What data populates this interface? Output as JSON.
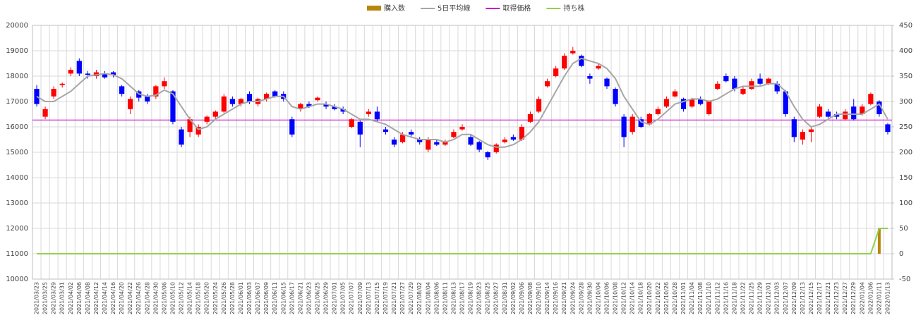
{
  "chart_data": {
    "type": "candlestick",
    "categories": [
      "2021/03/23",
      "2021/03/25",
      "2021/03/29",
      "2021/03/31",
      "2021/04/02",
      "2021/04/06",
      "2021/04/08",
      "2021/04/12",
      "2021/04/14",
      "2021/04/16",
      "2021/04/20",
      "2021/04/22",
      "2021/04/26",
      "2021/04/28",
      "2021/04/30",
      "2021/05/06",
      "2021/05/10",
      "2021/05/12",
      "2021/05/14",
      "2021/05/18",
      "2021/05/20",
      "2021/05/24",
      "2021/05/26",
      "2021/05/28",
      "2021/06/01",
      "2021/06/03",
      "2021/06/07",
      "2021/06/09",
      "2021/06/11",
      "2021/06/15",
      "2021/06/17",
      "2021/06/21",
      "2021/06/23",
      "2021/06/25",
      "2021/06/29",
      "2021/07/01",
      "2021/07/05",
      "2021/07/07",
      "2021/07/09",
      "2021/07/13",
      "2021/07/15",
      "2021/07/19",
      "2021/07/21",
      "2021/07/27",
      "2021/07/29",
      "2021/08/02",
      "2021/08/04",
      "2021/08/06",
      "2021/08/11",
      "2021/08/13",
      "2021/08/17",
      "2021/08/19",
      "2021/08/23",
      "2021/08/25",
      "2021/08/27",
      "2021/08/31",
      "2021/09/02",
      "2021/09/06",
      "2021/09/08",
      "2021/09/10",
      "2021/09/14",
      "2021/09/16",
      "2021/09/21",
      "2021/09/24",
      "2021/09/28",
      "2021/09/30",
      "2021/10/04",
      "2021/10/06",
      "2021/10/08",
      "2021/10/12",
      "2021/10/14",
      "2021/10/18",
      "2021/10/20",
      "2021/10/22",
      "2021/10/26",
      "2021/10/28",
      "2021/11/01",
      "2021/11/04",
      "2021/11/08",
      "2021/11/10",
      "2021/11/12",
      "2021/11/16",
      "2021/11/18",
      "2021/11/22",
      "2021/11/25",
      "2021/11/29",
      "2021/12/01",
      "2021/12/03",
      "2021/12/07",
      "2021/12/09",
      "2021/12/13",
      "2021/12/15",
      "2021/12/17",
      "2021/12/21",
      "2021/12/23",
      "2021/12/27",
      "2021/12/29",
      "2022/01/04",
      "2022/01/06",
      "2022/01/11",
      "2022/01/13"
    ],
    "ohlc": [
      [
        17500,
        17650,
        16800,
        16900
      ],
      [
        16400,
        16800,
        16300,
        16700
      ],
      [
        17200,
        17600,
        17100,
        17500
      ],
      [
        17650,
        17750,
        17550,
        17700
      ],
      [
        18100,
        18350,
        18000,
        18250
      ],
      [
        18600,
        18700,
        18000,
        18100
      ],
      [
        18100,
        18200,
        17900,
        18050
      ],
      [
        18000,
        18250,
        17900,
        18150
      ],
      [
        18100,
        18200,
        17900,
        17950
      ],
      [
        18150,
        18200,
        17950,
        18050
      ],
      [
        17600,
        17650,
        17200,
        17300
      ],
      [
        16700,
        17200,
        16500,
        17100
      ],
      [
        17400,
        17450,
        17000,
        17150
      ],
      [
        17200,
        17300,
        16900,
        17000
      ],
      [
        17200,
        17650,
        17100,
        17600
      ],
      [
        17600,
        17950,
        17500,
        17800
      ],
      [
        17400,
        17450,
        16100,
        16200
      ],
      [
        15900,
        16000,
        15200,
        15300
      ],
      [
        15800,
        16400,
        15600,
        16300
      ],
      [
        15700,
        16100,
        15600,
        16000
      ],
      [
        16200,
        16450,
        16100,
        16400
      ],
      [
        16400,
        16650,
        16300,
        16600
      ],
      [
        16600,
        17300,
        16550,
        17200
      ],
      [
        17100,
        17200,
        16800,
        16900
      ],
      [
        16900,
        17150,
        16800,
        17100
      ],
      [
        17300,
        17400,
        16900,
        17000
      ],
      [
        16900,
        17150,
        16800,
        17100
      ],
      [
        17100,
        17350,
        17000,
        17300
      ],
      [
        17400,
        17450,
        17150,
        17200
      ],
      [
        17300,
        17400,
        17000,
        17100
      ],
      [
        16300,
        16400,
        15600,
        15700
      ],
      [
        16700,
        16950,
        16600,
        16900
      ],
      [
        16900,
        17000,
        16750,
        16800
      ],
      [
        17050,
        17200,
        17000,
        17150
      ],
      [
        16900,
        17000,
        16700,
        16800
      ],
      [
        16800,
        16900,
        16650,
        16700
      ],
      [
        16700,
        16800,
        16500,
        16600
      ],
      [
        16000,
        16350,
        15950,
        16300
      ],
      [
        16200,
        16250,
        15200,
        15700
      ],
      [
        16500,
        16700,
        16400,
        16600
      ],
      [
        16600,
        16800,
        16200,
        16300
      ],
      [
        15900,
        16000,
        15700,
        15800
      ],
      [
        15500,
        15600,
        15200,
        15300
      ],
      [
        15400,
        15800,
        15350,
        15700
      ],
      [
        15800,
        15900,
        15600,
        15700
      ],
      [
        15500,
        15600,
        15300,
        15400
      ],
      [
        15100,
        15600,
        15000,
        15500
      ],
      [
        15400,
        15500,
        15250,
        15300
      ],
      [
        15300,
        15500,
        15250,
        15400
      ],
      [
        15600,
        15900,
        15550,
        15800
      ],
      [
        15900,
        16100,
        15850,
        16000
      ],
      [
        15600,
        15700,
        15250,
        15300
      ],
      [
        15400,
        15450,
        15000,
        15100
      ],
      [
        15000,
        15050,
        14700,
        14800
      ],
      [
        15000,
        15350,
        14950,
        15300
      ],
      [
        15400,
        15600,
        15350,
        15500
      ],
      [
        15600,
        15700,
        15450,
        15500
      ],
      [
        15500,
        16100,
        15450,
        16000
      ],
      [
        16200,
        16600,
        16150,
        16500
      ],
      [
        16600,
        17200,
        16550,
        17100
      ],
      [
        17600,
        17900,
        17550,
        17800
      ],
      [
        18000,
        18400,
        17950,
        18300
      ],
      [
        18300,
        18900,
        18250,
        18800
      ],
      [
        18900,
        19150,
        18850,
        19000
      ],
      [
        18800,
        18850,
        18350,
        18400
      ],
      [
        18000,
        18100,
        17700,
        17900
      ],
      [
        18300,
        18500,
        18250,
        18400
      ],
      [
        17900,
        17950,
        17500,
        17600
      ],
      [
        17500,
        17550,
        16800,
        16900
      ],
      [
        16400,
        16500,
        15200,
        15600
      ],
      [
        15800,
        16500,
        15700,
        16400
      ],
      [
        16300,
        16400,
        15950,
        16000
      ],
      [
        16100,
        16550,
        16050,
        16500
      ],
      [
        16500,
        16800,
        16450,
        16700
      ],
      [
        16800,
        17200,
        16750,
        17100
      ],
      [
        17200,
        17500,
        17150,
        17400
      ],
      [
        17100,
        17150,
        16600,
        16700
      ],
      [
        16800,
        17150,
        16750,
        17100
      ],
      [
        17100,
        17200,
        16850,
        16900
      ],
      [
        16500,
        17050,
        16450,
        17000
      ],
      [
        17500,
        17800,
        17450,
        17700
      ],
      [
        18000,
        18100,
        17750,
        17800
      ],
      [
        17900,
        18000,
        17400,
        17500
      ],
      [
        17300,
        17600,
        17250,
        17500
      ],
      [
        17500,
        17900,
        17450,
        17800
      ],
      [
        17900,
        18100,
        17650,
        17700
      ],
      [
        17700,
        17950,
        17650,
        17900
      ],
      [
        17700,
        17800,
        17300,
        17400
      ],
      [
        17400,
        17450,
        16400,
        16500
      ],
      [
        16300,
        16400,
        15400,
        15600
      ],
      [
        15500,
        15900,
        15300,
        15800
      ],
      [
        15800,
        16000,
        15400,
        15900
      ],
      [
        16400,
        16900,
        16350,
        16800
      ],
      [
        16600,
        16700,
        16350,
        16400
      ],
      [
        16500,
        16600,
        16300,
        16400
      ],
      [
        16300,
        16700,
        16250,
        16600
      ],
      [
        16800,
        17100,
        16250,
        16300
      ],
      [
        16500,
        16900,
        16450,
        16800
      ],
      [
        16900,
        17350,
        16850,
        17300
      ],
      [
        17000,
        17050,
        16400,
        16500
      ],
      [
        16100,
        16150,
        15700,
        15800
      ]
    ],
    "series": [
      {
        "name": "購入数",
        "color": "#b8860b",
        "type": "bar",
        "axis": "y2",
        "values": [
          null,
          null,
          null,
          null,
          null,
          null,
          null,
          null,
          null,
          null,
          null,
          null,
          null,
          null,
          null,
          null,
          null,
          null,
          null,
          null,
          null,
          null,
          null,
          null,
          null,
          null,
          null,
          null,
          null,
          null,
          null,
          null,
          null,
          null,
          null,
          null,
          null,
          null,
          null,
          null,
          null,
          null,
          null,
          null,
          null,
          null,
          null,
          null,
          null,
          null,
          null,
          null,
          null,
          null,
          null,
          null,
          null,
          null,
          null,
          null,
          null,
          null,
          null,
          null,
          null,
          null,
          null,
          null,
          null,
          null,
          null,
          null,
          null,
          null,
          null,
          null,
          null,
          null,
          null,
          null,
          null,
          null,
          null,
          null,
          null,
          null,
          null,
          null,
          null,
          null,
          null,
          null,
          null,
          null,
          null,
          null,
          null,
          null,
          null,
          50,
          null
        ]
      },
      {
        "name": "5日平均線",
        "color": "#a6a6a6",
        "type": "line",
        "values": [
          17200,
          17000,
          17000,
          17200,
          17400,
          17700,
          18000,
          18050,
          18100,
          18050,
          17900,
          17600,
          17300,
          17200,
          17250,
          17450,
          17300,
          16800,
          16300,
          15900,
          16000,
          16300,
          16500,
          16700,
          16900,
          17000,
          17000,
          17100,
          17200,
          17200,
          16800,
          16700,
          16800,
          16900,
          16900,
          16800,
          16700,
          16500,
          16300,
          16300,
          16200,
          16100,
          15900,
          15700,
          15600,
          15500,
          15500,
          15500,
          15400,
          15500,
          15700,
          15700,
          15500,
          15300,
          15200,
          15200,
          15300,
          15500,
          15800,
          16200,
          16800,
          17400,
          18000,
          18500,
          18700,
          18600,
          18500,
          18300,
          17900,
          17200,
          16700,
          16200,
          16100,
          16300,
          16600,
          16900,
          17000,
          17100,
          17100,
          17000,
          17100,
          17300,
          17500,
          17600,
          17600,
          17600,
          17700,
          17700,
          17400,
          16800,
          16300,
          16000,
          16100,
          16300,
          16500,
          16500,
          16500,
          16500,
          16700,
          16900,
          16300
        ]
      },
      {
        "name": "取得価格",
        "color": "#cc00cc",
        "type": "hline",
        "value": 16270
      },
      {
        "name": "持ち株",
        "color": "#92d050",
        "type": "line",
        "axis": "y2",
        "values": [
          0,
          0,
          0,
          0,
          0,
          0,
          0,
          0,
          0,
          0,
          0,
          0,
          0,
          0,
          0,
          0,
          0,
          0,
          0,
          0,
          0,
          0,
          0,
          0,
          0,
          0,
          0,
          0,
          0,
          0,
          0,
          0,
          0,
          0,
          0,
          0,
          0,
          0,
          0,
          0,
          0,
          0,
          0,
          0,
          0,
          0,
          0,
          0,
          0,
          0,
          0,
          0,
          0,
          0,
          0,
          0,
          0,
          0,
          0,
          0,
          0,
          0,
          0,
          0,
          0,
          0,
          0,
          0,
          0,
          0,
          0,
          0,
          0,
          0,
          0,
          0,
          0,
          0,
          0,
          0,
          0,
          0,
          0,
          0,
          0,
          0,
          0,
          0,
          0,
          0,
          0,
          0,
          0,
          0,
          0,
          0,
          0,
          0,
          0,
          50,
          50
        ]
      }
    ],
    "up_color": "#ff0000",
    "down_color": "#0000ff",
    "ylim": [
      10000,
      20000
    ],
    "yticks": [
      10000,
      11000,
      12000,
      13000,
      14000,
      15000,
      16000,
      17000,
      18000,
      19000,
      20000
    ],
    "y2lim": [
      -50,
      450
    ],
    "y2ticks": [
      -50,
      0,
      50,
      100,
      150,
      200,
      250,
      300,
      350,
      400,
      450
    ],
    "grid": true,
    "legend": "top"
  }
}
